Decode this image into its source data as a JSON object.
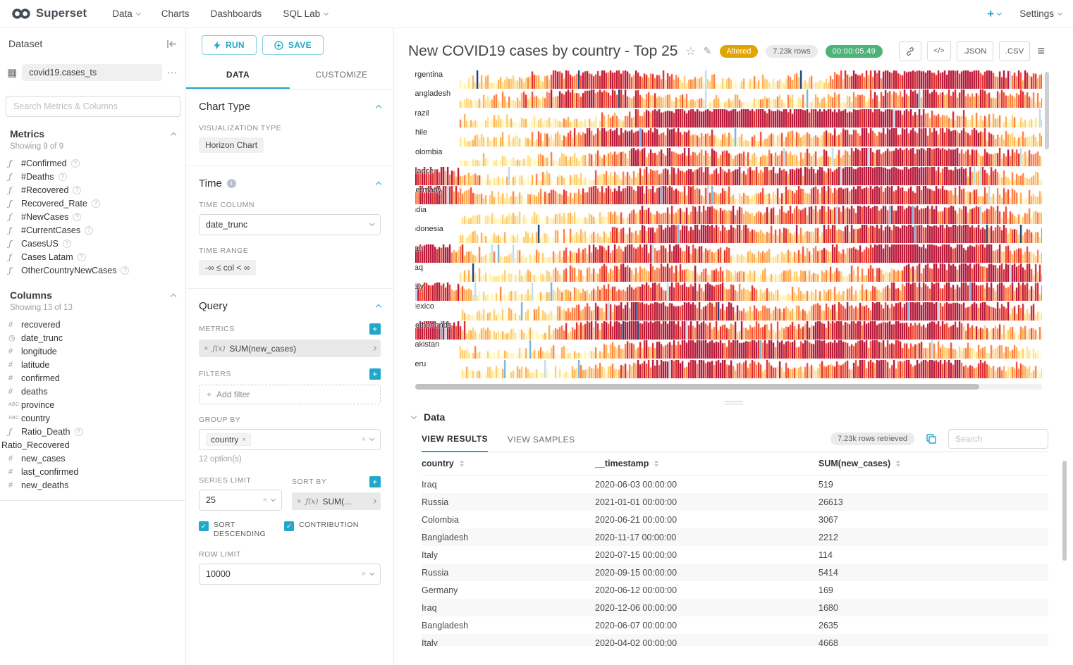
{
  "colors": {
    "primary": "#20a7c9",
    "altered_bg": "#dfa506",
    "rows_badge_bg": "#ebebeb",
    "timer_bg": "#4db378",
    "horizon_palette": [
      "#ffffd9",
      "#fff3b2",
      "#fee187",
      "#fec965",
      "#fea746",
      "#fd7435",
      "#f33c25",
      "#d7191c",
      "#b10026"
    ],
    "horizon_blues": [
      "#bdd7e7",
      "#6baed6",
      "#3182bd",
      "#08306b"
    ]
  },
  "navbar": {
    "brand": "Superset",
    "items": [
      {
        "label": "Data",
        "caret": true
      },
      {
        "label": "Charts",
        "caret": false
      },
      {
        "label": "Dashboards",
        "caret": false
      },
      {
        "label": "SQL Lab",
        "caret": true
      }
    ],
    "plus": "+",
    "settings": "Settings"
  },
  "dataset_panel": {
    "title": "Dataset",
    "dataset_name": "covid19.cases_ts",
    "search_placeholder": "Search Metrics & Columns",
    "metrics": {
      "title": "Metrics",
      "showing": "Showing 9 of 9",
      "items": [
        "#Confirmed",
        "#Deaths",
        "#Recovered",
        "Recovered_Rate",
        "#NewCases",
        "#CurrentCases",
        "CasesUS",
        "Cases Latam",
        "OtherCountryNewCases"
      ]
    },
    "columns": {
      "title": "Columns",
      "showing": "Showing 13 of 13",
      "items": [
        {
          "name": "recovered",
          "icon": "numeric"
        },
        {
          "name": "date_trunc",
          "icon": "temporal"
        },
        {
          "name": "longitude",
          "icon": "numeric"
        },
        {
          "name": "latitude",
          "icon": "numeric"
        },
        {
          "name": "confirmed",
          "icon": "numeric"
        },
        {
          "name": "deaths",
          "icon": "numeric"
        },
        {
          "name": "province",
          "icon": "text"
        },
        {
          "name": "country",
          "icon": "text"
        },
        {
          "name": "Ratio_Death",
          "icon": "function",
          "help": true
        },
        {
          "name": "Ratio_Recovered",
          "icon": "none"
        },
        {
          "name": "new_cases",
          "icon": "numeric"
        },
        {
          "name": "last_confirmed",
          "icon": "numeric"
        },
        {
          "name": "new_deaths",
          "icon": "numeric"
        }
      ]
    }
  },
  "controls": {
    "run_label": "RUN",
    "save_label": "SAVE",
    "tabs": {
      "data": "DATA",
      "customize": "CUSTOMIZE"
    },
    "chart_type": {
      "title": "Chart Type",
      "viz_label": "VISUALIZATION TYPE",
      "viz_value": "Horizon Chart"
    },
    "time": {
      "title": "Time",
      "column_label": "TIME COLUMN",
      "column_value": "date_trunc",
      "range_label": "TIME RANGE",
      "range_value": "-∞ ≤ col < ∞"
    },
    "query": {
      "title": "Query",
      "metrics_label": "METRICS",
      "metric_prefix": "ƒ(x)",
      "metric_value": "SUM(new_cases)",
      "filters_label": "FILTERS",
      "add_filter_label": "Add filter",
      "group_by_label": "GROUP BY",
      "group_by_value": "country",
      "options_hint": "12 option(s)",
      "series_limit_label": "SERIES LIMIT",
      "series_limit_value": "25",
      "sort_by_label": "SORT BY",
      "sort_by_prefix": "ƒ(x)",
      "sort_by_value": "SUM(...",
      "sort_descending_label": "SORT DESCENDING",
      "contribution_label": "CONTRIBUTION",
      "row_limit_label": "ROW LIMIT",
      "row_limit_value": "10000"
    }
  },
  "chart_header": {
    "title": "New COVID19 cases by country - Top 25",
    "altered_badge": "Altered",
    "rows_badge": "7.23k rows",
    "timer_badge": "00:00:05.49",
    "code_button": "</>",
    "json_button": ".JSON",
    "csv_button": ".CSV"
  },
  "chart_data": {
    "type": "horizon",
    "metric": "SUM(new_cases)",
    "time_column": "date_trunc",
    "series_limit": 25,
    "visible_countries": [
      "Argentina",
      "Bangladesh",
      "Brazil",
      "Chile",
      "Colombia",
      "France",
      "Germany",
      "India",
      "Indonesia",
      "Iran",
      "Iraq",
      "Italy",
      "Mexico",
      "Netherlands",
      "Pakistan",
      "Peru"
    ],
    "early_outbreak_countries": [
      "France",
      "Germany",
      "Iran",
      "Italy",
      "Netherlands"
    ]
  },
  "results": {
    "section_title": "Data",
    "tabs": {
      "results": "VIEW RESULTS",
      "samples": "VIEW SAMPLES"
    },
    "rows_badge": "7.23k rows retrieved",
    "search_placeholder": "Search",
    "columns": [
      "country",
      "__timestamp",
      "SUM(new_cases)"
    ],
    "rows": [
      [
        "Iraq",
        "2020-06-03 00:00:00",
        "519"
      ],
      [
        "Russia",
        "2021-01-01 00:00:00",
        "26613"
      ],
      [
        "Colombia",
        "2020-06-21 00:00:00",
        "3067"
      ],
      [
        "Bangladesh",
        "2020-11-17 00:00:00",
        "2212"
      ],
      [
        "Italy",
        "2020-07-15 00:00:00",
        "114"
      ],
      [
        "Russia",
        "2020-09-15 00:00:00",
        "5414"
      ],
      [
        "Germany",
        "2020-06-12 00:00:00",
        "169"
      ],
      [
        "Iraq",
        "2020-12-06 00:00:00",
        "1680"
      ],
      [
        "Bangladesh",
        "2020-06-07 00:00:00",
        "2635"
      ],
      [
        "Italy",
        "2020-04-02 00:00:00",
        "4668"
      ]
    ]
  }
}
